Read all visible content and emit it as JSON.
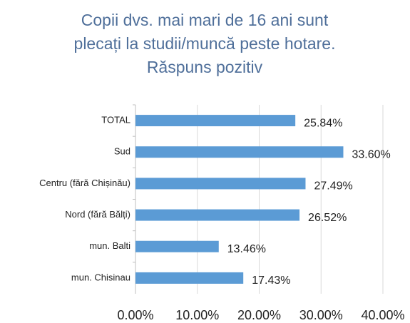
{
  "chart_data": {
    "type": "bar",
    "orientation": "horizontal",
    "title": [
      "Copii dvs. mai mari de 16 ani sunt",
      "plecați la studii/muncă peste hotare.",
      "Răspuns pozitiv"
    ],
    "categories": [
      "TOTAL",
      "Sud",
      "Centru (fără Chișinău)",
      "Nord (fără Bălți)",
      "mun. Balti",
      "mun. Chisinau"
    ],
    "values": [
      25.84,
      33.6,
      27.49,
      26.52,
      13.46,
      17.43
    ],
    "value_labels": [
      "25.84%",
      "33.60%",
      "27.49%",
      "26.52%",
      "13.46%",
      "17.43%"
    ],
    "color": "#5b9bd5",
    "xlim": [
      0,
      40
    ],
    "xticks": [
      {
        "value": 0,
        "label": "0.00%"
      },
      {
        "value": 10,
        "label": "10.00%"
      },
      {
        "value": 20,
        "label": "20.00%"
      },
      {
        "value": 30,
        "label": "30.00%"
      },
      {
        "value": 40,
        "label": "40.00%"
      }
    ],
    "grid": true
  }
}
